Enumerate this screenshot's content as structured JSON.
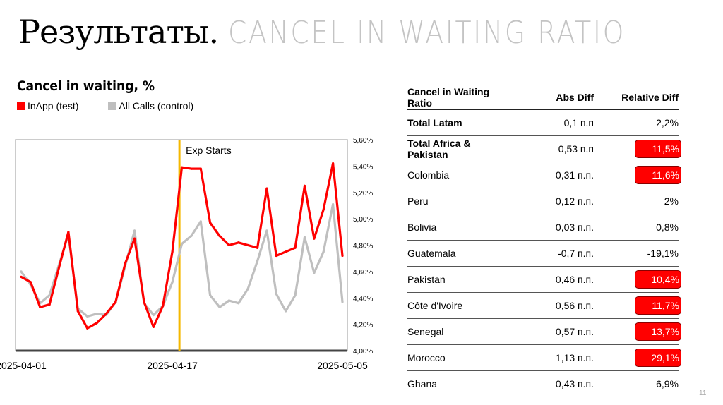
{
  "slide": {
    "title": "Результаты.",
    "subtitle": "CANCEL IN WAITING RATIO",
    "page_number": "11"
  },
  "chart_data": {
    "type": "line",
    "title": "Cancel in waiting, %",
    "x_tick_labels": [
      "2025-04-01",
      "2025-04-17",
      "2025-05-05"
    ],
    "x_start": "2025-04-01",
    "x_end": "2025-05-05",
    "y_tick_labels": [
      "4,00%",
      "4,20%",
      "4,40%",
      "4,60%",
      "4,80%",
      "5,00%",
      "5,20%",
      "5,40%",
      "5,60%"
    ],
    "ylim": [
      4.0,
      5.6
    ],
    "y_axis_position": "right",
    "grid": false,
    "legend_placement": "top-left",
    "annotation": {
      "label": "Exp Starts",
      "x": "2025-04-17",
      "color": "#f5b800"
    },
    "series": [
      {
        "name": "InApp (test)",
        "color": "#ff0000",
        "values": [
          4.56,
          4.52,
          4.33,
          4.35,
          4.63,
          4.9,
          4.3,
          4.17,
          4.21,
          4.28,
          4.37,
          4.66,
          4.85,
          4.37,
          4.18,
          4.34,
          4.75,
          5.39,
          5.38,
          5.38,
          4.97,
          4.87,
          4.8,
          4.82,
          4.8,
          4.78,
          5.23,
          4.72,
          4.75,
          4.78,
          5.25,
          4.85,
          5.07,
          5.42,
          4.72
        ]
      },
      {
        "name": "All Calls (control)",
        "color": "#bfbfbf",
        "values": [
          4.6,
          4.5,
          4.36,
          4.42,
          4.65,
          4.88,
          4.32,
          4.26,
          4.28,
          4.27,
          4.37,
          4.64,
          4.91,
          4.36,
          4.27,
          4.34,
          4.52,
          4.81,
          4.87,
          4.98,
          4.42,
          4.33,
          4.38,
          4.36,
          4.47,
          4.68,
          4.91,
          4.43,
          4.3,
          4.42,
          4.86,
          4.59,
          4.75,
          5.11,
          4.37
        ]
      }
    ]
  },
  "table": {
    "headers": [
      "Cancel in Waiting Ratio",
      "Abs Diff",
      "Relative Diff"
    ],
    "highlight_color": "#ff0000",
    "rows": [
      {
        "name": "Total Latam",
        "abs": "0,1 п.п",
        "rel": "2,2%",
        "bold": true,
        "highlight": false
      },
      {
        "name": "Total Africa & Pakistan",
        "abs": "0,53 п.п",
        "rel": "11,5%",
        "bold": true,
        "highlight": true
      },
      {
        "name": "Colombia",
        "abs": "0,31 п.п.",
        "rel": "11,6%",
        "bold": false,
        "highlight": true
      },
      {
        "name": "Peru",
        "abs": "0,12 п.п.",
        "rel": "2%",
        "bold": false,
        "highlight": false
      },
      {
        "name": "Bolivia",
        "abs": "0,03 п.п.",
        "rel": "0,8%",
        "bold": false,
        "highlight": false
      },
      {
        "name": "Guatemala",
        "abs": "-0,7 п.п.",
        "rel": "-19,1%",
        "bold": false,
        "highlight": false
      },
      {
        "name": "Pakistan",
        "abs": "0,46 п.п.",
        "rel": "10,4%",
        "bold": false,
        "highlight": true
      },
      {
        "name": "Côte d'Ivoire",
        "abs": "0,56 п.п.",
        "rel": "11,7%",
        "bold": false,
        "highlight": true
      },
      {
        "name": "Senegal",
        "abs": "0,57 п.п.",
        "rel": "13,7%",
        "bold": false,
        "highlight": true
      },
      {
        "name": "Morocco",
        "abs": "1,13 п.п.",
        "rel": "29,1%",
        "bold": false,
        "highlight": true
      },
      {
        "name": "Ghana",
        "abs": "0,43 п.п.",
        "rel": "6,9%",
        "bold": false,
        "highlight": false
      }
    ]
  }
}
